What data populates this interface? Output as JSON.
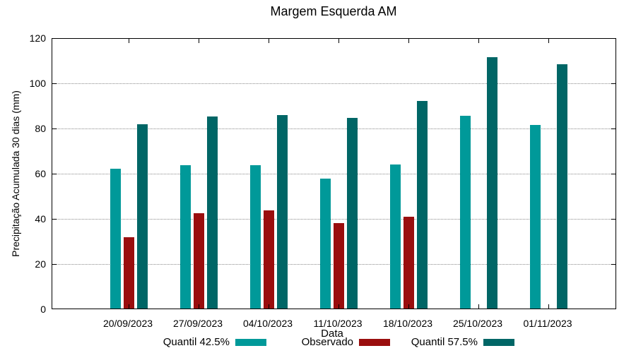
{
  "title": "Margem Esquerda AM",
  "chart_data": {
    "type": "bar",
    "title": "Margem Esquerda AM",
    "xlabel": "Data",
    "ylabel": "Precipitação Acumulada 30 dias (mm)",
    "ylim": [
      0,
      120
    ],
    "yticks": [
      0,
      20,
      40,
      60,
      80,
      100,
      120
    ],
    "grid": true,
    "legend_position": "bottom",
    "categories": [
      "20/09/2023",
      "27/09/2023",
      "04/10/2023",
      "11/10/2023",
      "18/10/2023",
      "25/10/2023",
      "01/11/2023"
    ],
    "series": [
      {
        "name": "Quantil 42.5%",
        "color": "#009999",
        "values": [
          62,
          63.3,
          63.3,
          57.5,
          63.7,
          85.3,
          81.3
        ]
      },
      {
        "name": "Observado",
        "color": "#9A0E0E",
        "values": [
          31.5,
          42.2,
          43.3,
          37.7,
          40.5,
          null,
          null
        ]
      },
      {
        "name": "Quantil 57.5%",
        "color": "#006666",
        "values": [
          81.5,
          85,
          85.5,
          84.3,
          92,
          111.2,
          108
        ]
      }
    ]
  }
}
